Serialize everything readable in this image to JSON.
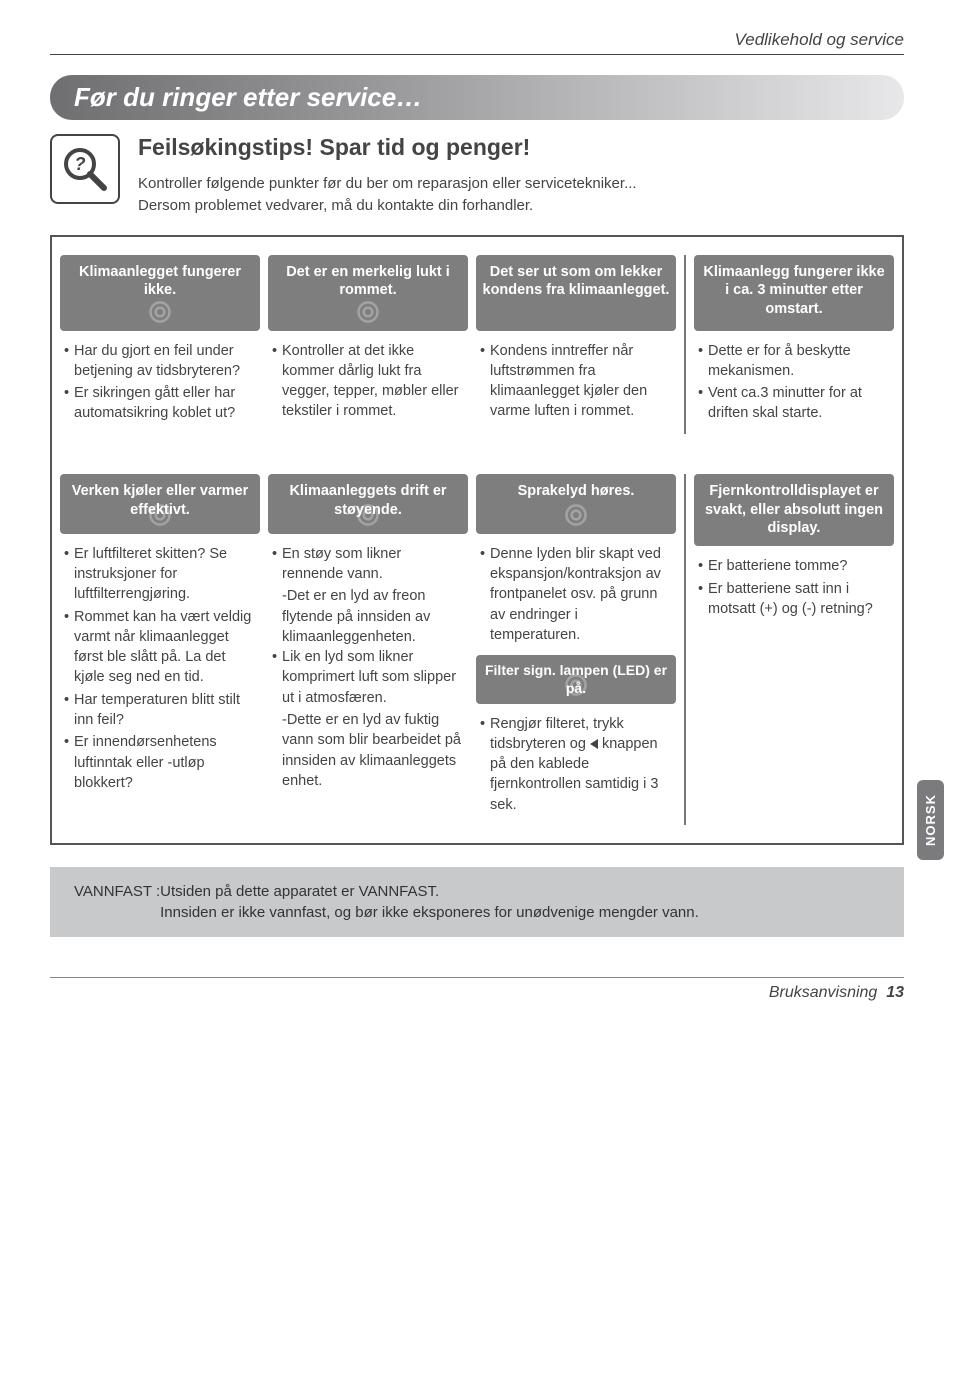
{
  "page": {
    "header_category": "Vedlikehold og service",
    "footer_text": "Bruksanvisning",
    "footer_page": "13",
    "side_tab": "NORSK"
  },
  "banner": {
    "title": "Før du ringer etter service…"
  },
  "intro": {
    "heading": "Feilsøkingstips! Spar tid og penger!",
    "line1": "Kontroller følgende punkter før du ber om reparasjon eller servicetekniker...",
    "line2": "Dersom problemet vedvarer, må du kontakte din forhandler."
  },
  "row1": {
    "c1": {
      "title": "Klimaanlegget fungerer ikke.",
      "bullets": [
        "Har du gjort en feil under betjening av tidsbryteren?",
        "Er sikringen gått eller har automatsikring koblet ut?"
      ]
    },
    "c2": {
      "title": "Det er en merkelig lukt i rommet.",
      "bullets": [
        "Kontroller at det ikke kommer dårlig lukt fra vegger, tepper, møbler eller tekstiler i rommet."
      ]
    },
    "c3": {
      "title": "Det ser ut som om lekker kondens fra klimaanlegget.",
      "bullets": [
        "Kondens inntreffer når luftstrømmen fra klimaanlegget kjøler den varme luften i rommet."
      ]
    },
    "c4": {
      "title": "Klimaanlegg fungerer ikke i ca. 3 minutter etter omstart.",
      "bullets": [
        "Dette er for å beskytte mekanismen.",
        "Vent ca.3 minutter for at driften skal starte."
      ]
    }
  },
  "row2": {
    "c1": {
      "title": "Verken kjøler eller varmer effektivt.",
      "bullets": [
        "Er luftfilteret skitten? Se instruksjoner for luftfilterrengjøring.",
        "Rommet kan ha vært veldig varmt når klimaanlegget først ble slått på. La det kjøle seg ned en tid.",
        "Har temperaturen blitt stilt inn feil?",
        "Er innendørsenhetens luftinntak eller -utløp blokkert?"
      ]
    },
    "c2": {
      "title": "Klimaanleggets drift er støyende.",
      "bullets": [
        "En støy som likner rennende vann.",
        "Lik en lyd som likner komprimert luft som slipper ut i atmosfæren."
      ],
      "sub1": "-Det er en lyd av freon flytende på innsiden av klimaanleggenheten.",
      "sub2": "-Dette er en lyd av fuktig vann som blir bearbeidet på innsiden av klimaanleggets enhet."
    },
    "c3a": {
      "title": "Sprakelyd høres.",
      "bullets": [
        "Denne lyden blir skapt ved ekspansjon/kontraksjon av frontpanelet osv. på grunn av endringer i temperaturen."
      ]
    },
    "c3b": {
      "title": "Filter sign. lampen (LED) er på.",
      "bullets_html": "Rengjør filteret, trykk tidsbryteren og <TRI> knappen på den kablede fjernkontrollen samtidig i 3 sek."
    },
    "c4": {
      "title": "Fjernkontrolldisplayet er svakt, eller absolutt ingen display.",
      "bullets": [
        "Er batteriene tomme?",
        "Er batteriene satt inn i motsatt (+) og (-) retning?"
      ]
    }
  },
  "vann": {
    "label": "VANNFAST : ",
    "l1": "Utsiden på dette apparatet er VANNFAST.",
    "l2": "Innsiden er ikke vannfast, og bør ikke eksponeres for unødvenige mengder vann."
  }
}
